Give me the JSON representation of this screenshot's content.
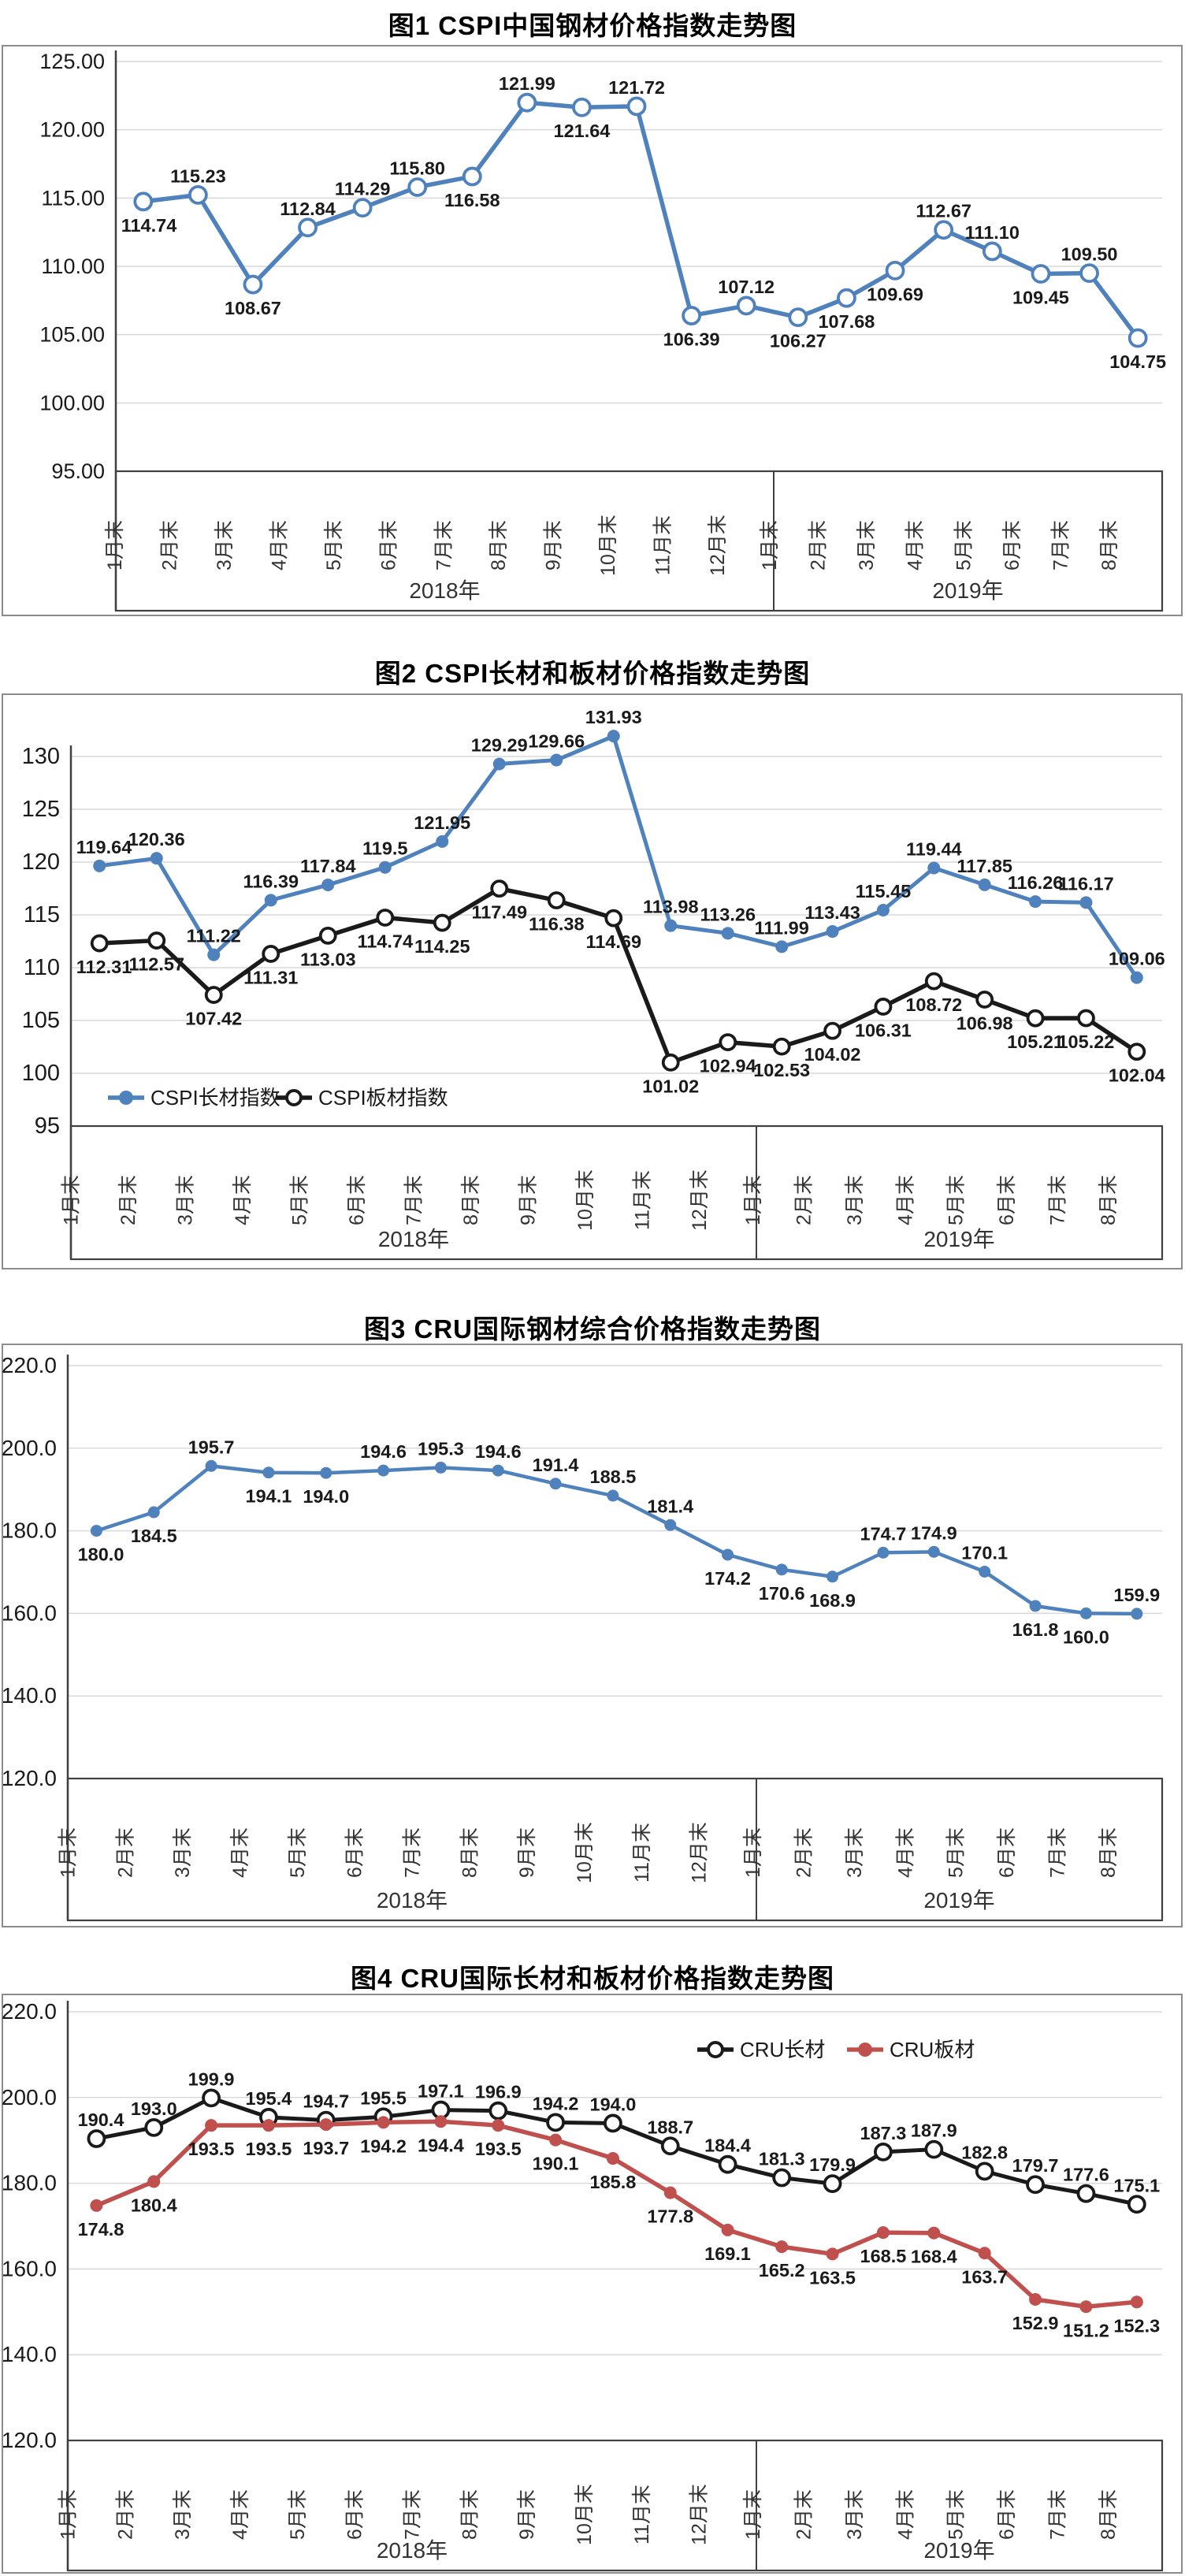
{
  "page": {
    "background": "#ffffff",
    "grid_color": "#d9d9d9",
    "axis_color": "#404040",
    "border_color": "#8c8c8c",
    "label_color": "#1a1a1a"
  },
  "chart_data": [
    {
      "type": "line",
      "title": "图1 CSPI中国钢材价格指数走势图",
      "y_ticks": [
        "125.00",
        "120.00",
        "115.00",
        "110.00",
        "105.00",
        "100.00",
        "95.00"
      ],
      "ylim": [
        95,
        125
      ],
      "y_step": 5,
      "grid": true,
      "legend": null,
      "x_groups": [
        {
          "year": "2018年",
          "months": [
            "1月末",
            "2月末",
            "3月末",
            "4月末",
            "5月末",
            "6月末",
            "7月末",
            "8月末",
            "9月末",
            "10月末",
            "11月末",
            "12月末"
          ]
        },
        {
          "year": "2019年",
          "months": [
            "1月末",
            "2月末",
            "3月末",
            "4月末",
            "5月末",
            "6月末",
            "7月末",
            "8月末"
          ]
        }
      ],
      "series": [
        {
          "name": "CSPI中国钢材价格指数",
          "color": "#4f81bd",
          "marker": "open",
          "values": [
            "114.74",
            "115.23",
            "108.67",
            "112.84",
            "114.29",
            "115.80",
            "116.58",
            "121.99",
            "121.64",
            "121.72",
            "106.39",
            "107.12",
            "106.27",
            "107.68",
            "109.69",
            "112.67",
            "111.10",
            "109.45",
            "109.50",
            "104.75"
          ]
        }
      ]
    },
    {
      "type": "line",
      "title": "图2 CSPI长材和板材价格指数走势图",
      "y_ticks": [
        "130",
        "125",
        "120",
        "115",
        "110",
        "105",
        "100",
        "95"
      ],
      "ylim": [
        95,
        130
      ],
      "y_step": 5,
      "grid": true,
      "legend": {
        "position": "inside-bottom-left",
        "items": [
          {
            "label": "CSPI长材指数",
            "color": "#4f81bd",
            "marker": "filled"
          },
          {
            "label": "CSPI板材指数",
            "color": "#1a1a1a",
            "marker": "open"
          }
        ]
      },
      "x_groups": [
        {
          "year": "2018年",
          "months": [
            "1月末",
            "2月末",
            "3月末",
            "4月末",
            "5月末",
            "6月末",
            "7月末",
            "8月末",
            "9月末",
            "10月末",
            "11月末",
            "12月末"
          ]
        },
        {
          "year": "2019年",
          "months": [
            "1月末",
            "2月末",
            "3月末",
            "4月末",
            "5月末",
            "6月末",
            "7月末",
            "8月末"
          ]
        }
      ],
      "series": [
        {
          "name": "CSPI长材指数",
          "color": "#4f81bd",
          "marker": "filled",
          "values": [
            "119.64",
            "120.36",
            "111.22",
            "116.39",
            "117.84",
            "119.5",
            "121.95",
            "129.29",
            "129.66",
            "131.93",
            "113.98",
            "113.26",
            "111.99",
            "113.43",
            "115.45",
            "119.44",
            "117.85",
            "116.26",
            "116.17",
            "109.06"
          ]
        },
        {
          "name": "CSPI板材指数",
          "color": "#1a1a1a",
          "marker": "open",
          "values": [
            "112.31",
            "112.57",
            "107.42",
            "111.31",
            "113.03",
            "114.74",
            "114.25",
            "117.49",
            "116.38",
            "114.69",
            "101.02",
            "102.94",
            "102.53",
            "104.02",
            "106.31",
            "108.72",
            "106.98",
            "105.21",
            "105.22",
            "102.04"
          ]
        }
      ]
    },
    {
      "type": "line",
      "title": "图3 CRU国际钢材综合价格指数走势图",
      "y_ticks": [
        "220.0",
        "200.0",
        "180.0",
        "160.0",
        "140.0",
        "120.0"
      ],
      "ylim": [
        120,
        220
      ],
      "y_step": 20,
      "grid": true,
      "legend": null,
      "x_groups": [
        {
          "year": "2018年",
          "months": [
            "1月末",
            "2月末",
            "3月末",
            "4月末",
            "5月末",
            "6月末",
            "7月末",
            "8月末",
            "9月末",
            "10月末",
            "11月末",
            "12月末"
          ]
        },
        {
          "year": "2019年",
          "months": [
            "1月末",
            "2月末",
            "3月末",
            "4月末",
            "5月末",
            "6月末",
            "7月末",
            "8月末"
          ]
        }
      ],
      "series": [
        {
          "name": "CRU国际钢材综合价格指数",
          "color": "#4f81bd",
          "marker": "filled",
          "values": [
            "180.0",
            "184.5",
            "195.7",
            "194.1",
            "194.0",
            "194.6",
            "195.3",
            "194.6",
            "191.4",
            "188.5",
            "181.4",
            "174.2",
            "170.6",
            "168.9",
            "174.7",
            "174.9",
            "170.1",
            "161.8",
            "160.0",
            "159.9"
          ]
        }
      ]
    },
    {
      "type": "line",
      "title": "图4 CRU国际长材和板材价格指数走势图",
      "y_ticks": [
        "220.0",
        "200.0",
        "180.0",
        "160.0",
        "140.0",
        "120.0"
      ],
      "ylim": [
        120,
        220
      ],
      "y_step": 20,
      "grid": true,
      "legend": {
        "position": "inside-top-center",
        "items": [
          {
            "label": "CRU长材",
            "color": "#1a1a1a",
            "marker": "open"
          },
          {
            "label": "CRU板材",
            "color": "#c0504d",
            "marker": "filled"
          }
        ]
      },
      "x_groups": [
        {
          "year": "2018年",
          "months": [
            "1月末",
            "2月末",
            "3月末",
            "4月末",
            "5月末",
            "6月末",
            "7月末",
            "8月末",
            "9月末",
            "10月末",
            "11月末",
            "12月末"
          ]
        },
        {
          "year": "2019年",
          "months": [
            "1月末",
            "2月末",
            "3月末",
            "4月末",
            "5月末",
            "6月末",
            "7月末",
            "8月末"
          ]
        }
      ],
      "series": [
        {
          "name": "CRU长材",
          "color": "#1a1a1a",
          "marker": "open",
          "values": [
            "190.4",
            "193.0",
            "199.9",
            "195.4",
            "194.7",
            "195.5",
            "197.1",
            "196.9",
            "194.2",
            "194.0",
            "188.7",
            "184.4",
            "181.3",
            "179.9",
            "187.3",
            "187.9",
            "182.8",
            "179.7",
            "177.6",
            "175.1"
          ]
        },
        {
          "name": "CRU板材",
          "color": "#c0504d",
          "marker": "filled",
          "values": [
            "174.8",
            "180.4",
            "193.5",
            "193.5",
            "193.7",
            "194.2",
            "194.4",
            "193.5",
            "190.1",
            "185.8",
            "177.8",
            "169.1",
            "165.2",
            "163.5",
            "168.5",
            "168.4",
            "163.7",
            "152.9",
            "151.2",
            "152.3"
          ]
        }
      ]
    }
  ]
}
